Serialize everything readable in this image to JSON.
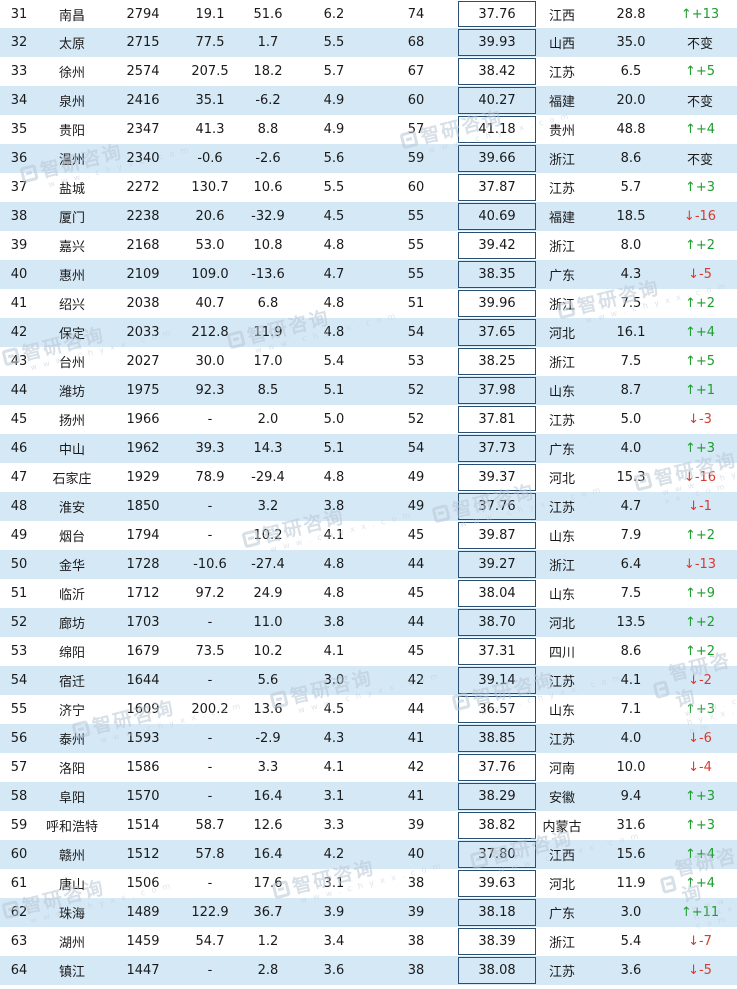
{
  "rows": [
    {
      "rank": "31",
      "city": "南昌",
      "value": "2794",
      "g1": "19.1",
      "g2": "51.6",
      "g3": "6.2",
      "n": "74",
      "age": "37.76",
      "province": "江西",
      "pct": "28.8",
      "change": "↑+13",
      "dir": "up"
    },
    {
      "rank": "32",
      "city": "太原",
      "value": "2715",
      "g1": "77.5",
      "g2": "1.7",
      "g3": "5.5",
      "n": "68",
      "age": "39.93",
      "province": "山西",
      "pct": "35.0",
      "change": "不变",
      "dir": "same"
    },
    {
      "rank": "33",
      "city": "徐州",
      "value": "2574",
      "g1": "207.5",
      "g2": "18.2",
      "g3": "5.7",
      "n": "67",
      "age": "38.42",
      "province": "江苏",
      "pct": "6.5",
      "change": "↑+5",
      "dir": "up"
    },
    {
      "rank": "34",
      "city": "泉州",
      "value": "2416",
      "g1": "35.1",
      "g2": "-6.2",
      "g3": "4.9",
      "n": "60",
      "age": "40.27",
      "province": "福建",
      "pct": "20.0",
      "change": "不变",
      "dir": "same"
    },
    {
      "rank": "35",
      "city": "贵阳",
      "value": "2347",
      "g1": "41.3",
      "g2": "8.8",
      "g3": "4.9",
      "n": "57",
      "age": "41.18",
      "province": "贵州",
      "pct": "48.8",
      "change": "↑+4",
      "dir": "up"
    },
    {
      "rank": "36",
      "city": "温州",
      "value": "2340",
      "g1": "-0.6",
      "g2": "-2.6",
      "g3": "5.6",
      "n": "59",
      "age": "39.66",
      "province": "浙江",
      "pct": "8.6",
      "change": "不变",
      "dir": "same"
    },
    {
      "rank": "37",
      "city": "盐城",
      "value": "2272",
      "g1": "130.7",
      "g2": "10.6",
      "g3": "5.5",
      "n": "60",
      "age": "37.87",
      "province": "江苏",
      "pct": "5.7",
      "change": "↑+3",
      "dir": "up"
    },
    {
      "rank": "38",
      "city": "厦门",
      "value": "2238",
      "g1": "20.6",
      "g2": "-32.9",
      "g3": "4.5",
      "n": "55",
      "age": "40.69",
      "province": "福建",
      "pct": "18.5",
      "change": "↓-16",
      "dir": "down"
    },
    {
      "rank": "39",
      "city": "嘉兴",
      "value": "2168",
      "g1": "53.0",
      "g2": "10.8",
      "g3": "4.8",
      "n": "55",
      "age": "39.42",
      "province": "浙江",
      "pct": "8.0",
      "change": "↑+2",
      "dir": "up"
    },
    {
      "rank": "40",
      "city": "惠州",
      "value": "2109",
      "g1": "109.0",
      "g2": "-13.6",
      "g3": "4.7",
      "n": "55",
      "age": "38.35",
      "province": "广东",
      "pct": "4.3",
      "change": "↓-5",
      "dir": "down"
    },
    {
      "rank": "41",
      "city": "绍兴",
      "value": "2038",
      "g1": "40.7",
      "g2": "6.8",
      "g3": "4.8",
      "n": "51",
      "age": "39.96",
      "province": "浙江",
      "pct": "7.5",
      "change": "↑+2",
      "dir": "up"
    },
    {
      "rank": "42",
      "city": "保定",
      "value": "2033",
      "g1": "212.8",
      "g2": "11.9",
      "g3": "4.8",
      "n": "54",
      "age": "37.65",
      "province": "河北",
      "pct": "16.1",
      "change": "↑+4",
      "dir": "up"
    },
    {
      "rank": "43",
      "city": "台州",
      "value": "2027",
      "g1": "30.0",
      "g2": "17.0",
      "g3": "5.4",
      "n": "53",
      "age": "38.25",
      "province": "浙江",
      "pct": "7.5",
      "change": "↑+5",
      "dir": "up"
    },
    {
      "rank": "44",
      "city": "潍坊",
      "value": "1975",
      "g1": "92.3",
      "g2": "8.5",
      "g3": "5.1",
      "n": "52",
      "age": "37.98",
      "province": "山东",
      "pct": "8.7",
      "change": "↑+1",
      "dir": "up"
    },
    {
      "rank": "45",
      "city": "扬州",
      "value": "1966",
      "g1": "-",
      "g2": "2.0",
      "g3": "5.0",
      "n": "52",
      "age": "37.81",
      "province": "江苏",
      "pct": "5.0",
      "change": "↓-3",
      "dir": "down"
    },
    {
      "rank": "46",
      "city": "中山",
      "value": "1962",
      "g1": "39.3",
      "g2": "14.3",
      "g3": "5.1",
      "n": "54",
      "age": "37.73",
      "province": "广东",
      "pct": "4.0",
      "change": "↑+3",
      "dir": "up"
    },
    {
      "rank": "47",
      "city": "石家庄",
      "value": "1929",
      "g1": "78.9",
      "g2": "-29.4",
      "g3": "4.8",
      "n": "49",
      "age": "39.37",
      "province": "河北",
      "pct": "15.3",
      "change": "↓-16",
      "dir": "down"
    },
    {
      "rank": "48",
      "city": "淮安",
      "value": "1850",
      "g1": "-",
      "g2": "3.2",
      "g3": "3.8",
      "n": "49",
      "age": "37.76",
      "province": "江苏",
      "pct": "4.7",
      "change": "↓-1",
      "dir": "down"
    },
    {
      "rank": "49",
      "city": "烟台",
      "value": "1794",
      "g1": "-",
      "g2": "10.2",
      "g3": "4.1",
      "n": "45",
      "age": "39.87",
      "province": "山东",
      "pct": "7.9",
      "change": "↑+2",
      "dir": "up"
    },
    {
      "rank": "50",
      "city": "金华",
      "value": "1728",
      "g1": "-10.6",
      "g2": "-27.4",
      "g3": "4.8",
      "n": "44",
      "age": "39.27",
      "province": "浙江",
      "pct": "6.4",
      "change": "↓-13",
      "dir": "down"
    },
    {
      "rank": "51",
      "city": "临沂",
      "value": "1712",
      "g1": "97.2",
      "g2": "24.9",
      "g3": "4.8",
      "n": "45",
      "age": "38.04",
      "province": "山东",
      "pct": "7.5",
      "change": "↑+9",
      "dir": "up"
    },
    {
      "rank": "52",
      "city": "廊坊",
      "value": "1703",
      "g1": "-",
      "g2": "11.0",
      "g3": "3.8",
      "n": "44",
      "age": "38.70",
      "province": "河北",
      "pct": "13.5",
      "change": "↑+2",
      "dir": "up"
    },
    {
      "rank": "53",
      "city": "绵阳",
      "value": "1679",
      "g1": "73.5",
      "g2": "10.2",
      "g3": "4.1",
      "n": "45",
      "age": "37.31",
      "province": "四川",
      "pct": "8.6",
      "change": "↑+2",
      "dir": "up"
    },
    {
      "rank": "54",
      "city": "宿迁",
      "value": "1644",
      "g1": "-",
      "g2": "5.6",
      "g3": "3.0",
      "n": "42",
      "age": "39.14",
      "province": "江苏",
      "pct": "4.1",
      "change": "↓-2",
      "dir": "down"
    },
    {
      "rank": "55",
      "city": "济宁",
      "value": "1609",
      "g1": "200.2",
      "g2": "13.6",
      "g3": "4.5",
      "n": "44",
      "age": "36.57",
      "province": "山东",
      "pct": "7.1",
      "change": "↑+3",
      "dir": "up"
    },
    {
      "rank": "56",
      "city": "泰州",
      "value": "1593",
      "g1": "-",
      "g2": "-2.9",
      "g3": "4.3",
      "n": "41",
      "age": "38.85",
      "province": "江苏",
      "pct": "4.0",
      "change": "↓-6",
      "dir": "down"
    },
    {
      "rank": "57",
      "city": "洛阳",
      "value": "1586",
      "g1": "-",
      "g2": "3.3",
      "g3": "4.1",
      "n": "42",
      "age": "37.76",
      "province": "河南",
      "pct": "10.0",
      "change": "↓-4",
      "dir": "down"
    },
    {
      "rank": "58",
      "city": "阜阳",
      "value": "1570",
      "g1": "-",
      "g2": "16.4",
      "g3": "3.1",
      "n": "41",
      "age": "38.29",
      "province": "安徽",
      "pct": "9.4",
      "change": "↑+3",
      "dir": "up"
    },
    {
      "rank": "59",
      "city": "呼和浩特",
      "value": "1514",
      "g1": "58.7",
      "g2": "12.6",
      "g3": "3.3",
      "n": "39",
      "age": "38.82",
      "province": "内蒙古",
      "pct": "31.6",
      "change": "↑+3",
      "dir": "up"
    },
    {
      "rank": "60",
      "city": "赣州",
      "value": "1512",
      "g1": "57.8",
      "g2": "16.4",
      "g3": "4.2",
      "n": "40",
      "age": "37.80",
      "province": "江西",
      "pct": "15.6",
      "change": "↑+4",
      "dir": "up"
    },
    {
      "rank": "61",
      "city": "唐山",
      "value": "1506",
      "g1": "-",
      "g2": "17.6",
      "g3": "3.1",
      "n": "38",
      "age": "39.63",
      "province": "河北",
      "pct": "11.9",
      "change": "↑+4",
      "dir": "up"
    },
    {
      "rank": "62",
      "city": "珠海",
      "value": "1489",
      "g1": "122.9",
      "g2": "36.7",
      "g3": "3.9",
      "n": "39",
      "age": "38.18",
      "province": "广东",
      "pct": "3.0",
      "change": "↑+11",
      "dir": "up"
    },
    {
      "rank": "63",
      "city": "湖州",
      "value": "1459",
      "g1": "54.7",
      "g2": "1.2",
      "g3": "3.4",
      "n": "38",
      "age": "38.39",
      "province": "浙江",
      "pct": "5.4",
      "change": "↓-7",
      "dir": "down"
    },
    {
      "rank": "64",
      "city": "镇江",
      "value": "1447",
      "g1": "-",
      "g2": "2.8",
      "g3": "3.6",
      "n": "38",
      "age": "38.08",
      "province": "江苏",
      "pct": "3.6",
      "change": "↓-5",
      "dir": "down"
    }
  ],
  "watermark": {
    "name": "智研咨询",
    "url": "w w w . c h y x x . c o m"
  },
  "colors": {
    "stripe": "#d5e8f6",
    "up": "#1e9e2e",
    "down": "#d93a2f",
    "box_border": "#2a4f72"
  }
}
